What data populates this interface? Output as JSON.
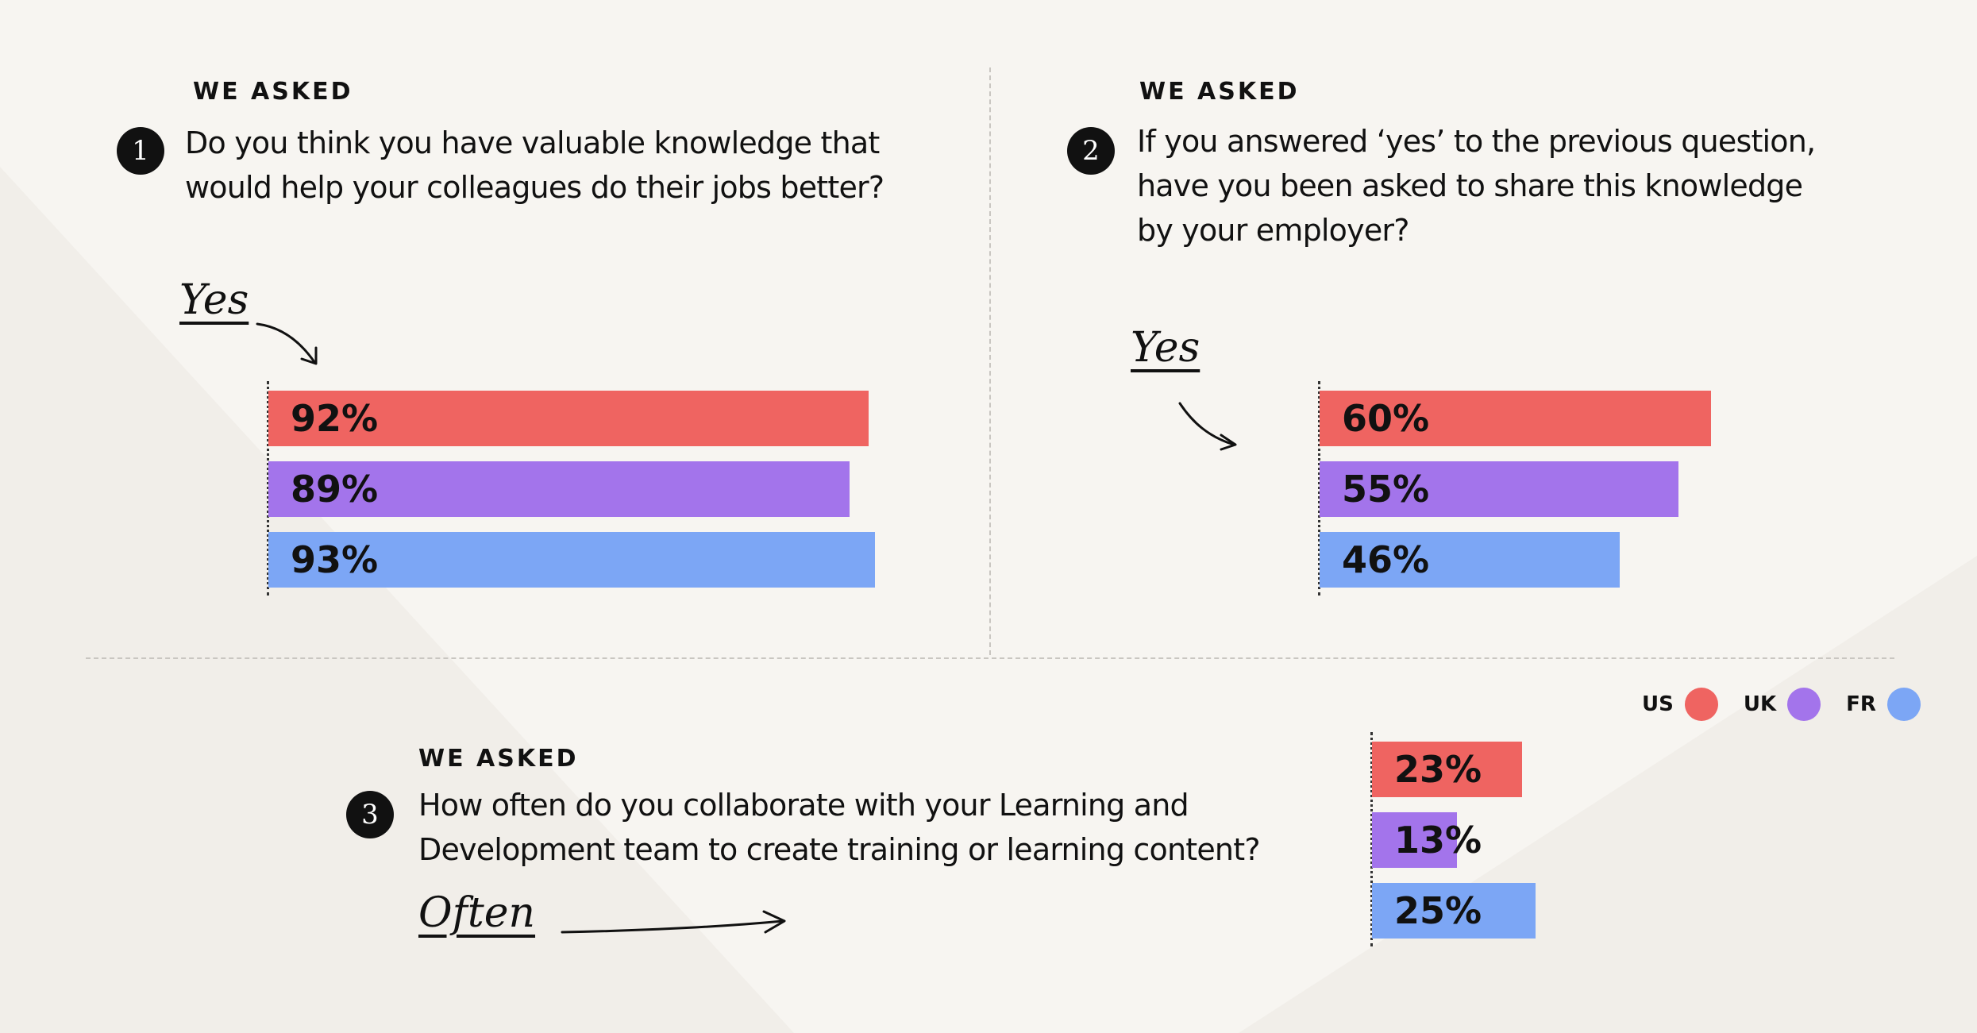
{
  "colors": {
    "us": "#ef6461",
    "uk": "#a374eb",
    "fr": "#7ca6f5",
    "ink": "#111111"
  },
  "legend": [
    {
      "label": "US",
      "color": "#ef6461"
    },
    {
      "label": "UK",
      "color": "#a374eb"
    },
    {
      "label": "FR",
      "color": "#7ca6f5"
    }
  ],
  "questions": [
    {
      "eyebrow": "WE ASKED",
      "number": "1",
      "line1": "Do you think you have valuable knowledge that",
      "line2": "would help your colleagues do their jobs better?",
      "answer_label": "Yes"
    },
    {
      "eyebrow": "WE ASKED",
      "number": "2",
      "line1": "If you answered ‘yes’ to the previous question,",
      "line2": "have you been asked to share this knowledge",
      "line3": "by your employer?",
      "answer_label": "Yes"
    },
    {
      "eyebrow": "WE ASKED",
      "number": "3",
      "line1": "How often do you collaborate with your Learning and",
      "line2": "Development team to create training or learning content?",
      "answer_label": "Often"
    }
  ],
  "chart_data": [
    {
      "type": "bar",
      "orientation": "horizontal",
      "categories": [
        "US",
        "UK",
        "FR"
      ],
      "values": [
        92,
        89,
        93
      ],
      "labels": [
        "92%",
        "89%",
        "93%"
      ],
      "colors": [
        "#ef6461",
        "#a374eb",
        "#7ca6f5"
      ],
      "xlim": [
        0,
        100
      ]
    },
    {
      "type": "bar",
      "orientation": "horizontal",
      "categories": [
        "US",
        "UK",
        "FR"
      ],
      "values": [
        60,
        55,
        46
      ],
      "labels": [
        "60%",
        "55%",
        "46%"
      ],
      "colors": [
        "#ef6461",
        "#a374eb",
        "#7ca6f5"
      ],
      "xlim": [
        0,
        100
      ]
    },
    {
      "type": "bar",
      "orientation": "horizontal",
      "categories": [
        "US",
        "UK",
        "FR"
      ],
      "values": [
        23,
        13,
        25
      ],
      "labels": [
        "23%",
        "13%",
        "25%"
      ],
      "colors": [
        "#ef6461",
        "#a374eb",
        "#7ca6f5"
      ],
      "xlim": [
        0,
        100
      ]
    }
  ]
}
